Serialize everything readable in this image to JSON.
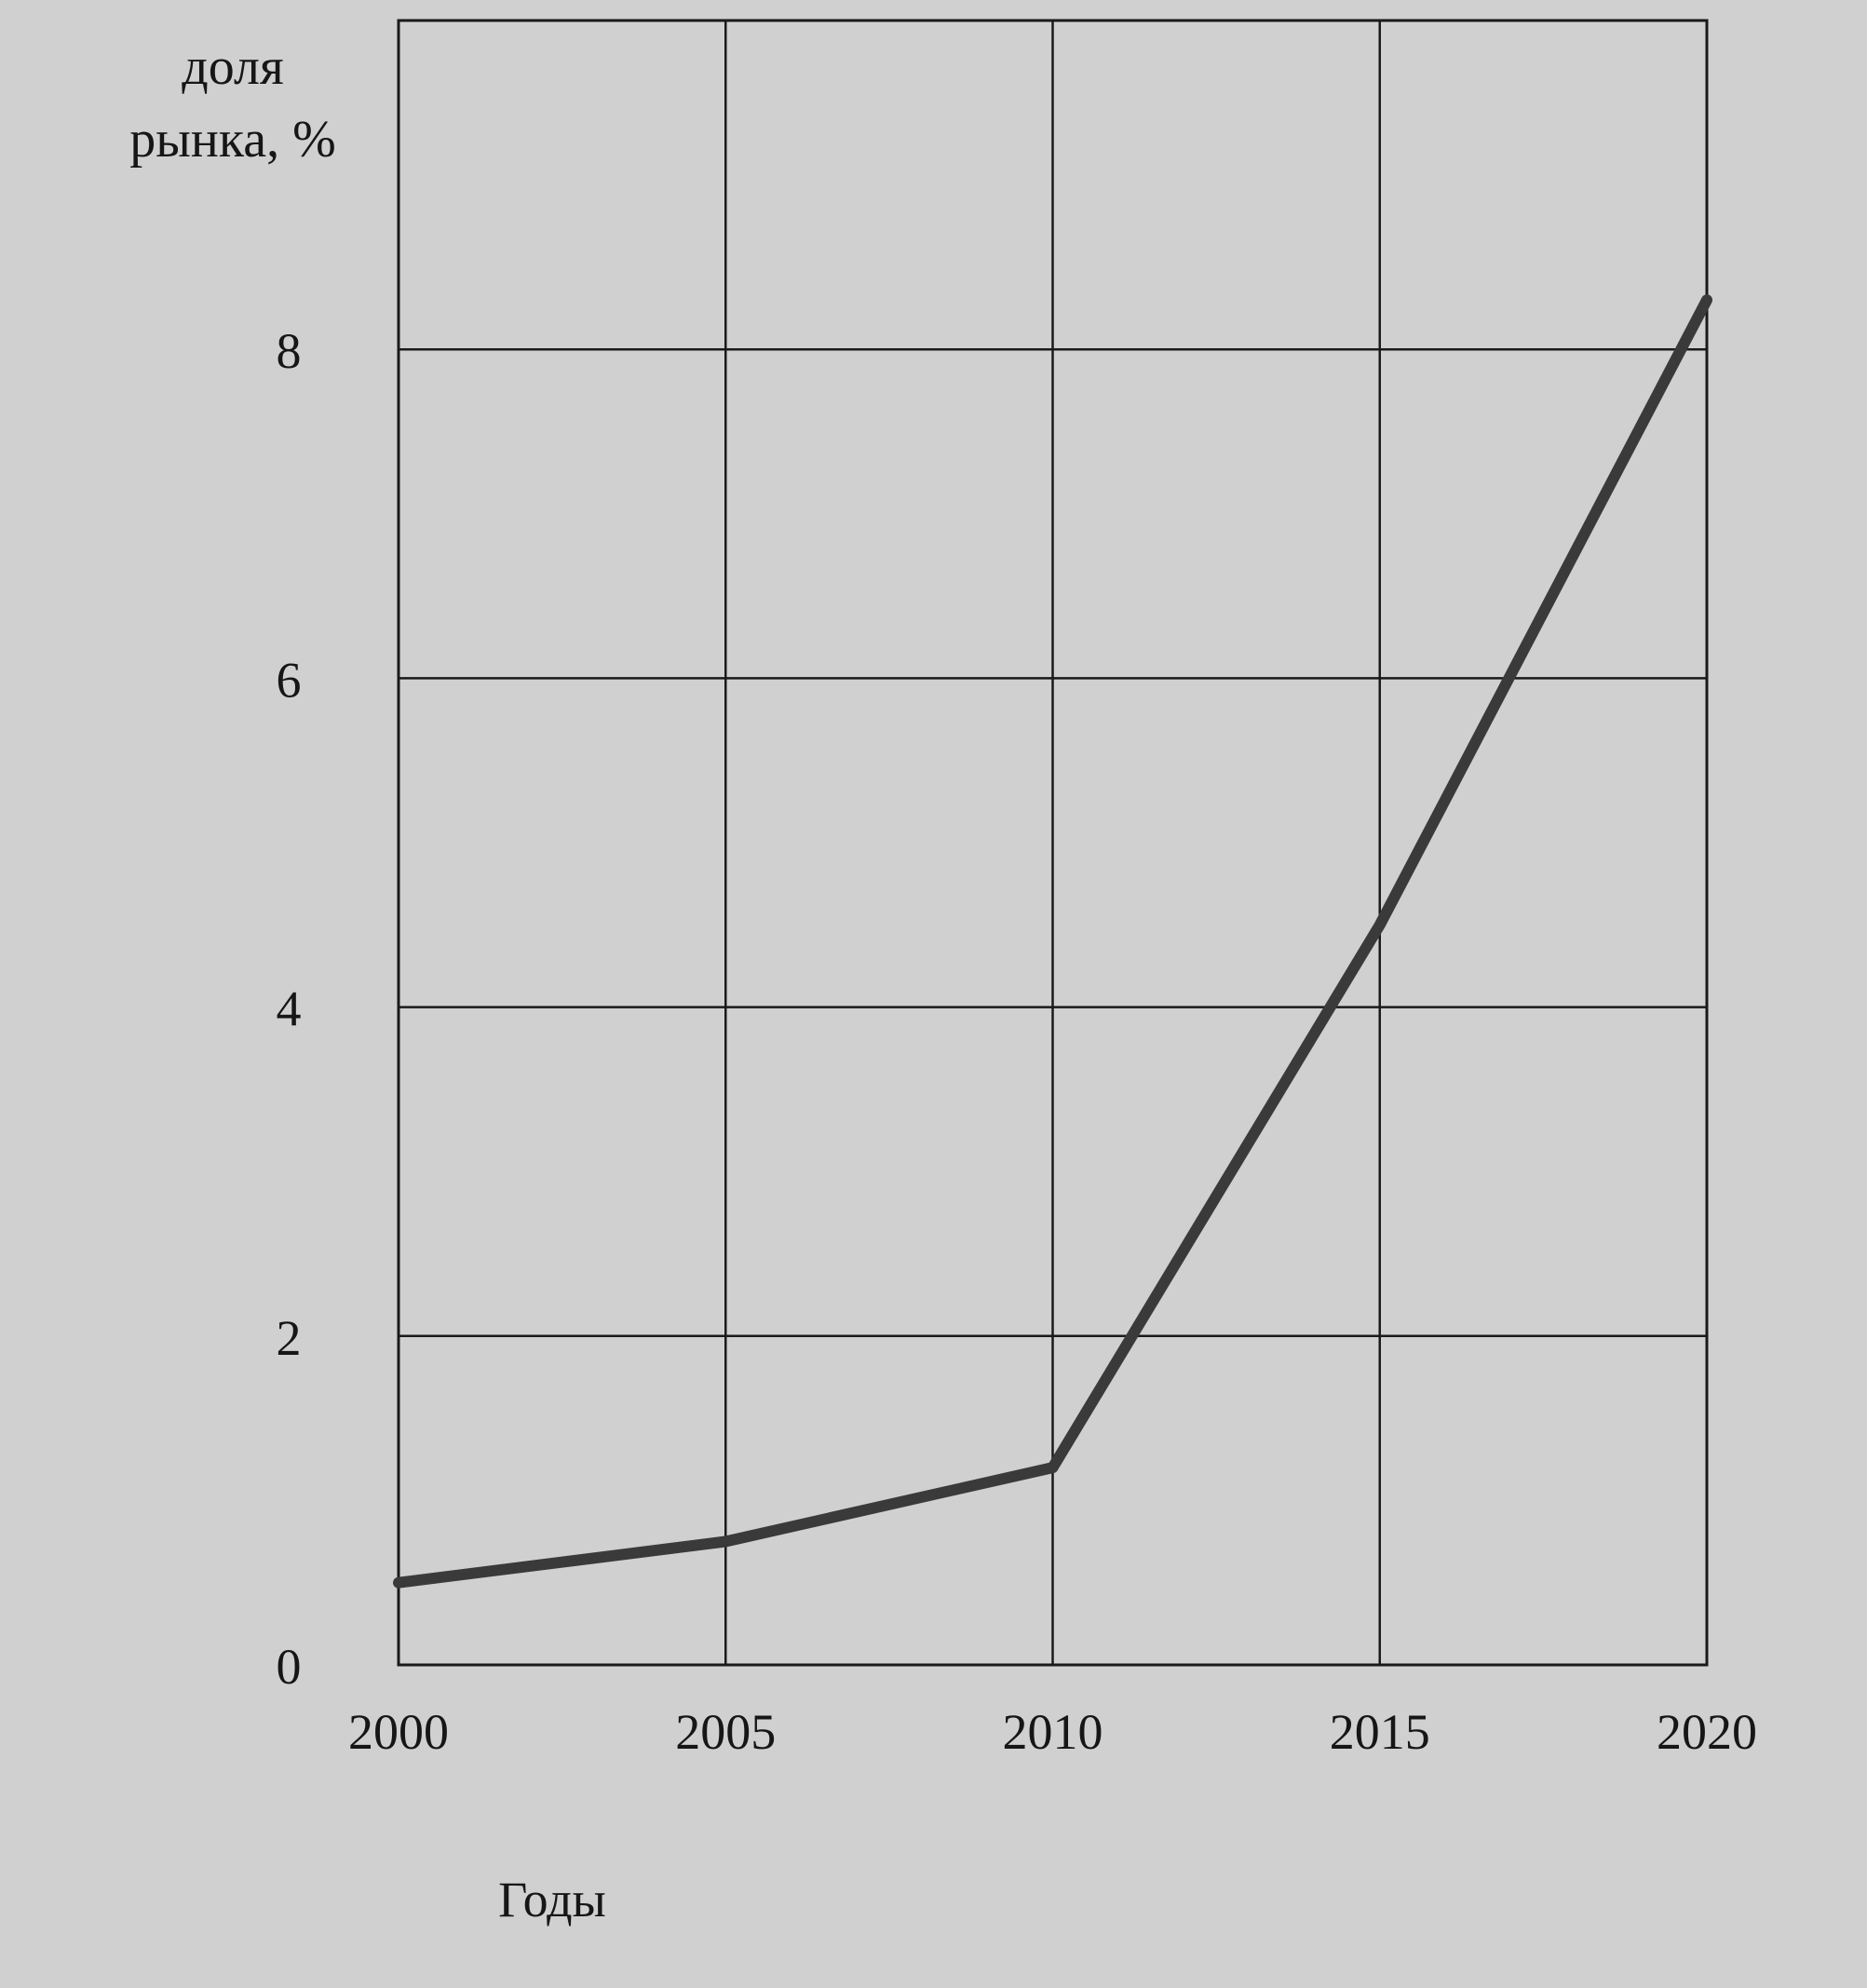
{
  "chart_data": {
    "type": "line",
    "title": "",
    "ylabel_lines": [
      "доля",
      "рынка, %"
    ],
    "xlabel": "Годы",
    "x_ticks": [
      "2000",
      "2005",
      "2010",
      "2015",
      "2020"
    ],
    "y_ticks": [
      "0",
      "2",
      "4",
      "6",
      "8"
    ],
    "xlim": [
      2000,
      2020
    ],
    "ylim": [
      0,
      10
    ],
    "grid": true,
    "x_grid_step": 5,
    "y_grid_step": 2,
    "series": [
      {
        "x": [
          2000,
          2005,
          2010,
          2015,
          2020
        ],
        "values": [
          0.5,
          0.75,
          1.2,
          4.5,
          8.3
        ]
      }
    ],
    "colors": {
      "line": "#3a3a3a",
      "grid": "#1a1a1a",
      "background": "#d0d0d0",
      "text": "#161616"
    }
  }
}
